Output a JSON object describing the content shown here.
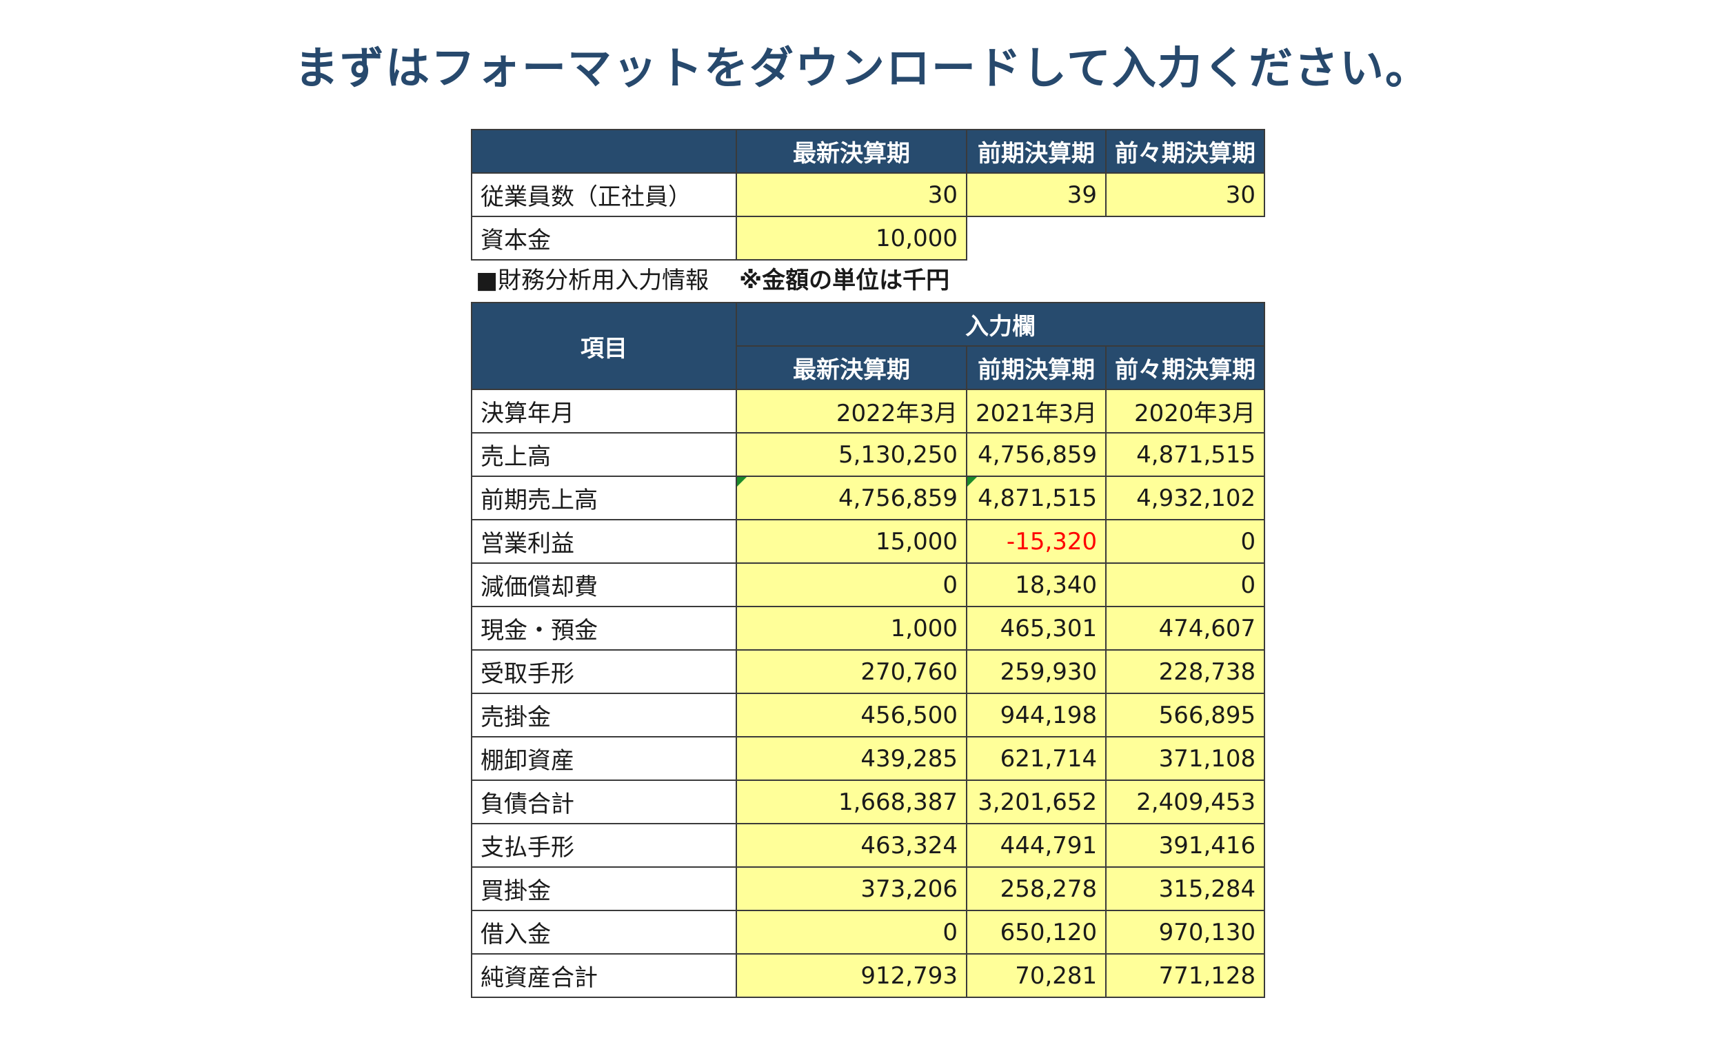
{
  "title": "まずはフォーマットをダウンロードして入力ください。",
  "top_table": {
    "headers": [
      "",
      "最新決算期",
      "前期決算期",
      "前々期決算期"
    ],
    "employees": {
      "label": "従業員数（正社員）",
      "values": [
        "30",
        "39",
        "30"
      ]
    },
    "capital": {
      "label": "資本金",
      "value": "10,000"
    }
  },
  "section": {
    "label": "■財務分析用入力情報",
    "unit_note": "※金額の単位は千円"
  },
  "main_table": {
    "item_header": "項目",
    "input_header": "入力欄",
    "period_headers": [
      "最新決算期",
      "前期決算期",
      "前々期決算期"
    ],
    "rows": [
      {
        "label": "決算年月",
        "values": [
          "2022年3月",
          "2021年3月",
          "2020年3月"
        ]
      },
      {
        "label": "売上高",
        "values": [
          "5,130,250",
          "4,756,859",
          "4,871,515"
        ]
      },
      {
        "label": "前期売上高",
        "values": [
          "4,756,859",
          "4,871,515",
          "4,932,102"
        ]
      },
      {
        "label": "営業利益",
        "values": [
          "15,000",
          "-15,320",
          "0"
        ]
      },
      {
        "label": "減価償却費",
        "values": [
          "0",
          "18,340",
          "0"
        ]
      },
      {
        "label": "現金・預金",
        "values": [
          "1,000",
          "465,301",
          "474,607"
        ]
      },
      {
        "label": "受取手形",
        "values": [
          "270,760",
          "259,930",
          "228,738"
        ]
      },
      {
        "label": "売掛金",
        "values": [
          "456,500",
          "944,198",
          "566,895"
        ]
      },
      {
        "label": "棚卸資産",
        "values": [
          "439,285",
          "621,714",
          "371,108"
        ]
      },
      {
        "label": "負債合計",
        "values": [
          "1,668,387",
          "3,201,652",
          "2,409,453"
        ]
      },
      {
        "label": "支払手形",
        "values": [
          "463,324",
          "444,791",
          "391,416"
        ]
      },
      {
        "label": "買掛金",
        "values": [
          "373,206",
          "258,278",
          "315,284"
        ]
      },
      {
        "label": "借入金",
        "values": [
          "0",
          "650,120",
          "970,130"
        ]
      },
      {
        "label": "純資産合計",
        "values": [
          "912,793",
          "70,281",
          "771,128"
        ]
      }
    ]
  },
  "colors": {
    "header_bg": "#274b6e",
    "input_bg": "#ffff99",
    "negative": "#ff0000",
    "title": "#27496d"
  }
}
